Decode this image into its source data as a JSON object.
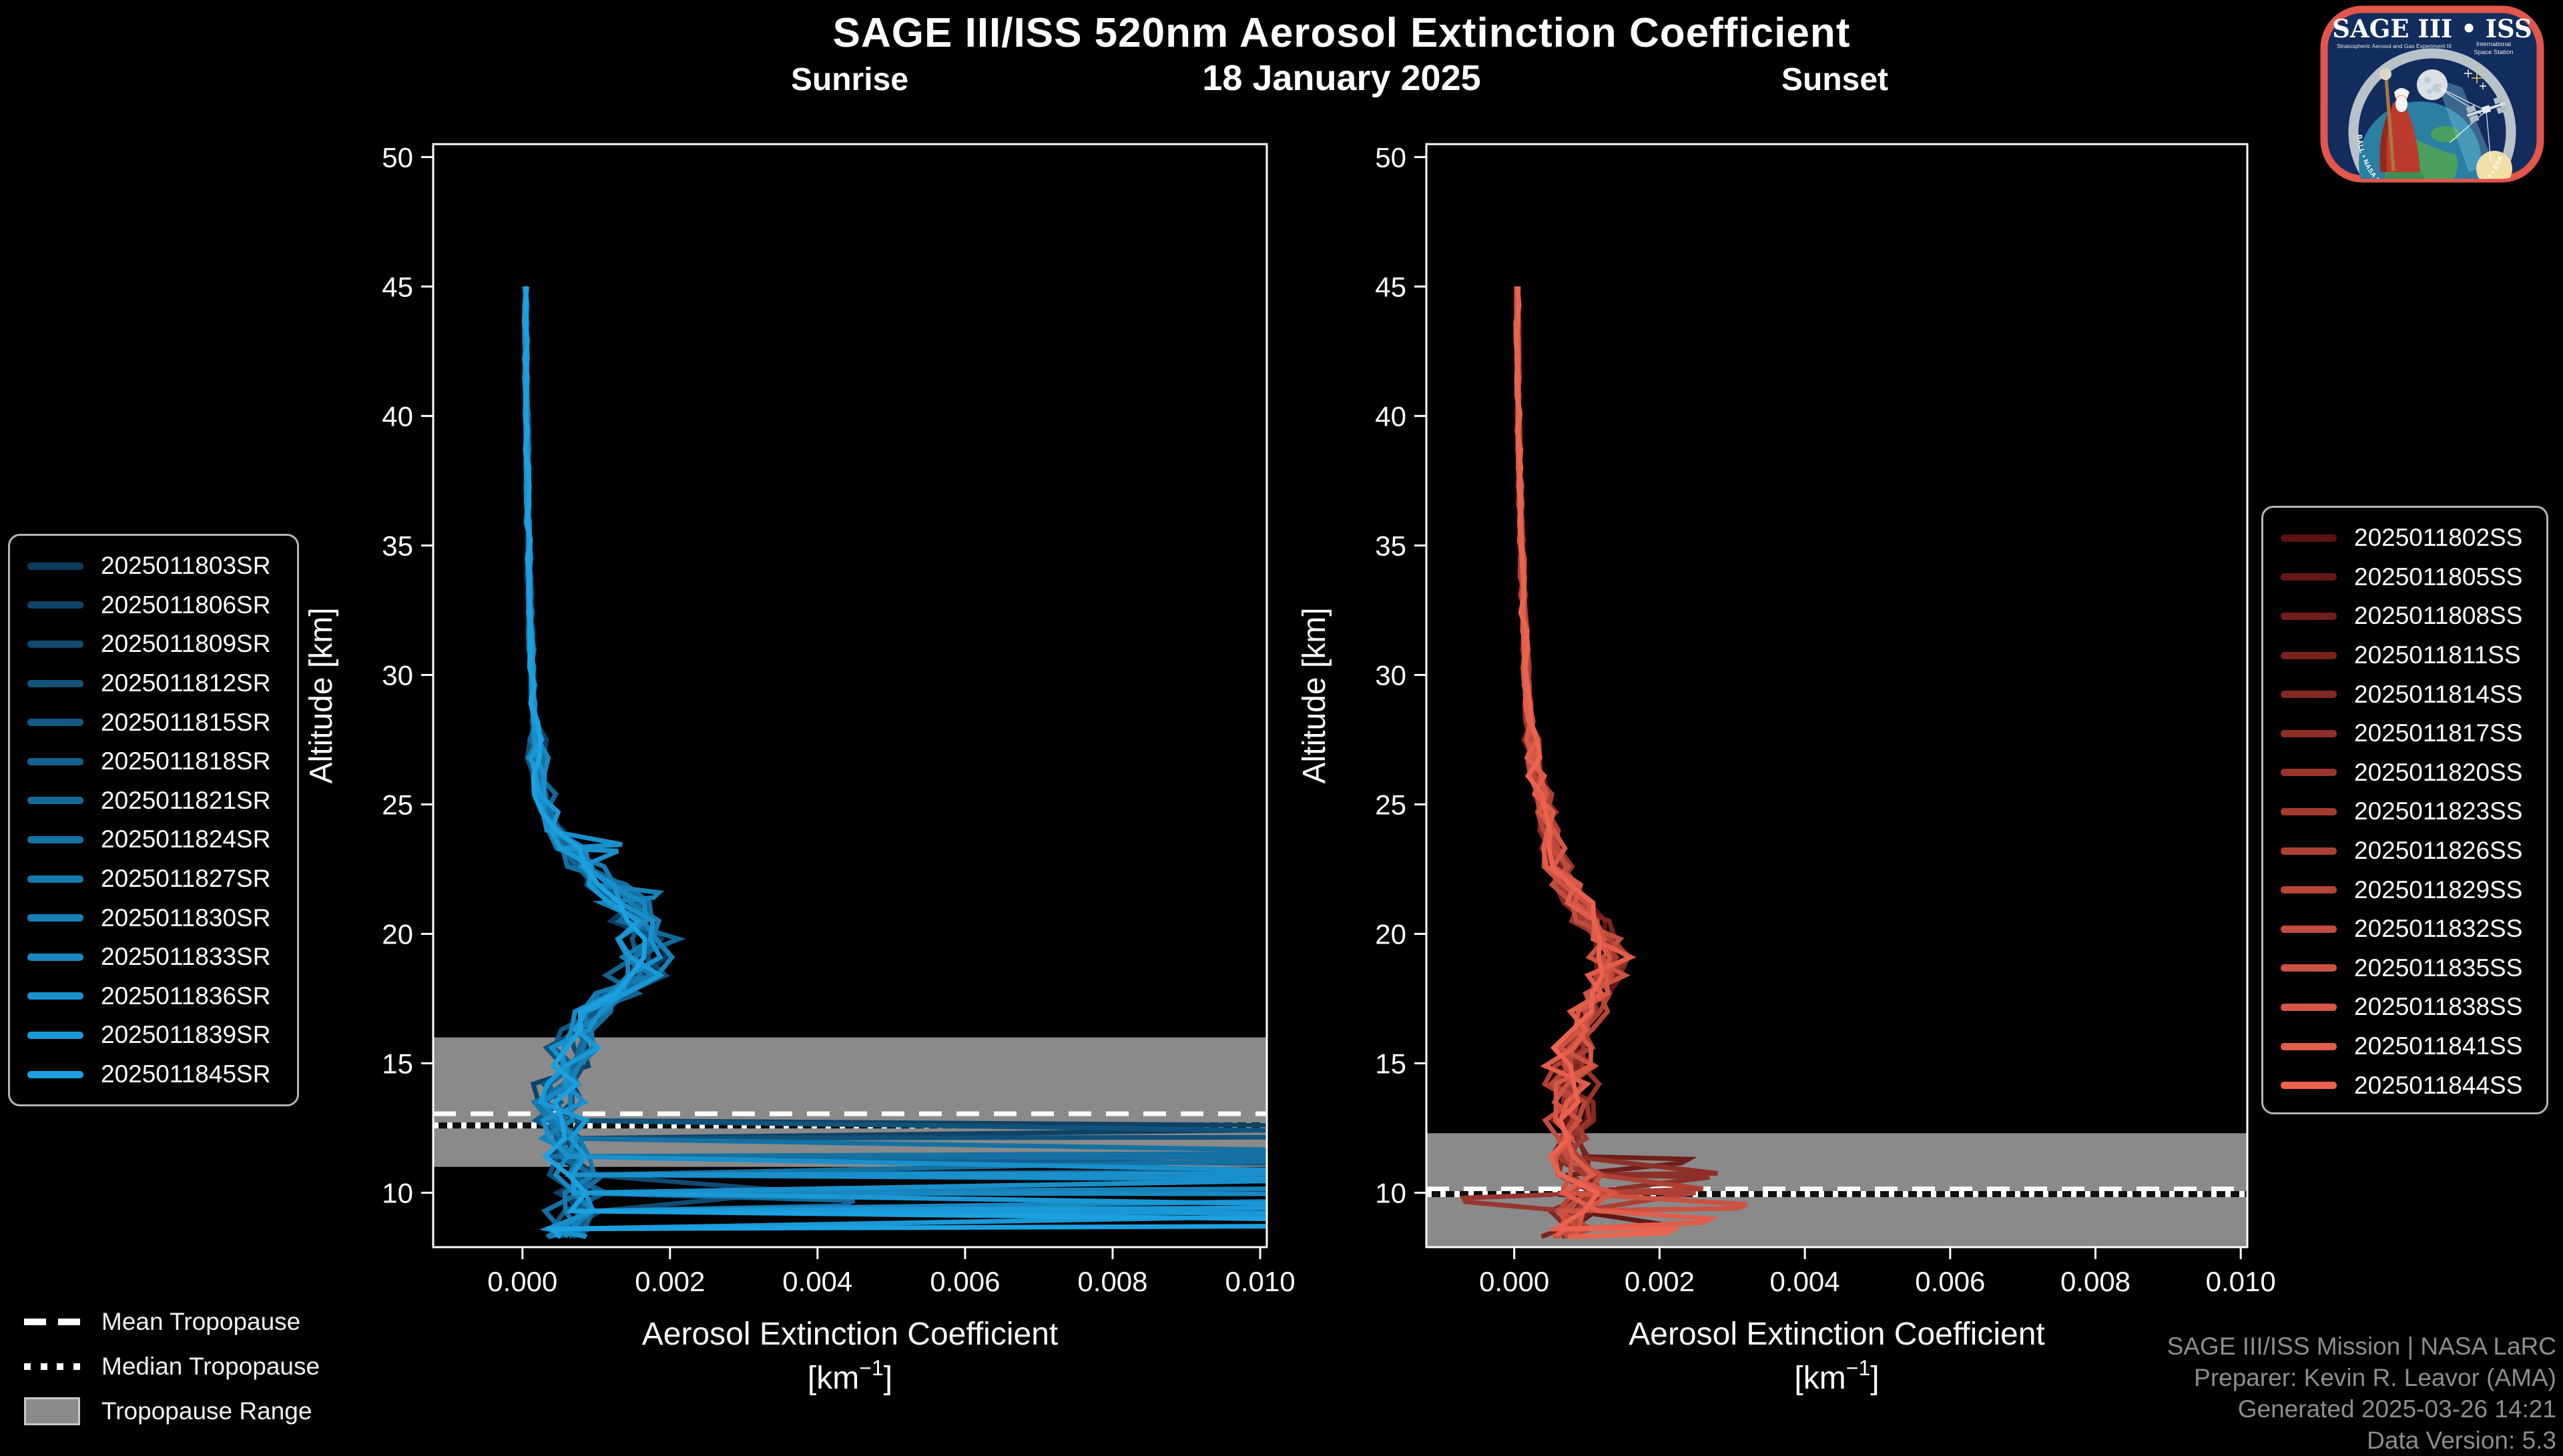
{
  "page": {
    "background": "#000000"
  },
  "header": {
    "title": "SAGE III/ISS 520nm Aerosol Extinction Coefficient",
    "date": "18 January 2025"
  },
  "logo": {
    "title": "SAGE III • ISS",
    "subtitle_left": "Stratospheric Aerosol and Gas Experiment III",
    "subtitle_right_line1": "International",
    "subtitle_right_line2": "Space Station",
    "ring_text": "BALL • NASA LANGLEY RESEARCH CENTER • TAS-I • ESA",
    "border_color": "#e2574a",
    "background_color": "#132c5e"
  },
  "axes": {
    "ylabel": "Altitude [km]",
    "xlabel": "Aerosol Extinction Coefficient",
    "xunit_prefix": "[km",
    "xunit_sup": "−1",
    "xunit_suffix": "]",
    "x_tick_labels": [
      "0.000",
      "0.002",
      "0.004",
      "0.006",
      "0.008",
      "0.010"
    ],
    "x_tick_values": [
      0,
      0.002,
      0.004,
      0.006,
      0.008,
      0.01
    ],
    "y_tick_labels": [
      "10",
      "15",
      "20",
      "25",
      "30",
      "35",
      "40",
      "45",
      "50"
    ],
    "y_tick_values": [
      10,
      15,
      20,
      25,
      30,
      35,
      40,
      45,
      50
    ]
  },
  "tropopause_legend": {
    "mean_label": "Mean Tropopause",
    "median_label": "Median Tropopause",
    "range_label": "Tropopause Range",
    "range_color": "#8a8a8a"
  },
  "credits": {
    "color": "#8d8d8d",
    "lines": [
      "SAGE III/ISS Mission | NASA LaRC",
      "Preparer: Kevin R. Leavor (AMA)",
      "Generated 2025-03-26 14:21",
      "Data Version: 5.3"
    ]
  },
  "chart_data": [
    {
      "type": "line",
      "title": "Sunrise",
      "xlabel": "Aerosol Extinction Coefficient [km^-1]",
      "ylabel": "Altitude [km]",
      "xlim": [
        -0.00121,
        0.01009
      ],
      "ylim": [
        7.9,
        50.5
      ],
      "legend_position": "outside-left",
      "grid": false,
      "tropopause": {
        "range_km": [
          11.0,
          16.0
        ],
        "mean_km": 13.05,
        "median_km": 12.6
      },
      "noise": {
        "rel": 0.22,
        "hi": 2e-05,
        "mid": 0.00012,
        "lo": 0.00028
      },
      "base_profile": {
        "alt_km": [
          45,
          44.3,
          43.6,
          42.9,
          42.2,
          41.5,
          40.8,
          40.1,
          39.4,
          38.7,
          38,
          37.3,
          36.6,
          35.9,
          35.2,
          34.5,
          33.8,
          33.1,
          32.4,
          31.7,
          31,
          30.3,
          29.6,
          28.9,
          28.2,
          27.5,
          26.8,
          26.1,
          25.4,
          24.7,
          24,
          23.3,
          22.6,
          21.9,
          21.2,
          20.5,
          19.8,
          19.1,
          18.4,
          17.7,
          17,
          16.3,
          15.6,
          14.9,
          14.2,
          13.5,
          12.8,
          12.1,
          11.4,
          10.7,
          10,
          9.3,
          8.6,
          8.3
        ],
        "extinction_km1": [
          4e-05,
          4e-05,
          4.2e-05,
          4.4e-05,
          4.6e-05,
          4.8e-05,
          5e-05,
          5.3e-05,
          5.6e-05,
          6e-05,
          6.3e-05,
          6.7e-05,
          7.1e-05,
          7.6e-05,
          8.1e-05,
          8.7e-05,
          9.3e-05,
          0.0001,
          0.000107,
          0.000114,
          0.000122,
          0.000131,
          0.00014,
          0.00015,
          0.000162,
          0.000178,
          0.0002,
          0.00023,
          0.00028,
          0.00036,
          0.00048,
          0.00065,
          0.00088,
          0.00115,
          0.00138,
          0.00158,
          0.00172,
          0.00174,
          0.00158,
          0.00128,
          0.00098,
          0.00082,
          0.0007,
          0.0006,
          0.00052,
          0.00048,
          0.0005,
          0.00056,
          0.00063,
          0.0007,
          0.00078,
          0.00072,
          0.00058,
          0.00052
        ]
      },
      "series": [
        {
          "label": "2025011803SR",
          "color": "#0e3a5c",
          "seed": 101,
          "spikes": []
        },
        {
          "label": "2025011806SR",
          "color": "#0f4266",
          "seed": 102,
          "spikes": [
            [
              12.6,
              12.42,
              0.0105
            ]
          ]
        },
        {
          "label": "2025011809SR",
          "color": "#104a70",
          "seed": 103,
          "spikes": [
            [
              10.1,
              9.95,
              0.0035
            ]
          ]
        },
        {
          "label": "2025011812SR",
          "color": "#11527a",
          "seed": 104,
          "spikes": [
            [
              12.35,
              12.15,
              0.0115
            ]
          ]
        },
        {
          "label": "2025011815SR",
          "color": "#125985",
          "seed": 105,
          "spikes": []
        },
        {
          "label": "2025011818SR",
          "color": "#13618f",
          "seed": 106,
          "spikes": [
            [
              11.05,
              10.85,
              0.013
            ]
          ]
        },
        {
          "label": "2025011821SR",
          "color": "#146999",
          "seed": 107,
          "spikes": [
            [
              9.7,
              9.5,
              0.0045
            ]
          ]
        },
        {
          "label": "2025011824SR",
          "color": "#1571a3",
          "seed": 108,
          "spikes": [
            [
              11.55,
              11.35,
              0.0125
            ]
          ]
        },
        {
          "label": "2025011827SR",
          "color": "#1679ad",
          "seed": 109,
          "spikes": []
        },
        {
          "label": "2025011830SR",
          "color": "#1781b7",
          "seed": 110,
          "spikes": [
            [
              21.6,
              21.4,
              0.00185
            ],
            [
              10.45,
              10.2,
              0.0135
            ]
          ]
        },
        {
          "label": "2025011833SR",
          "color": "#1888c2",
          "seed": 111,
          "spikes": [
            [
              9.95,
              9.72,
              0.012
            ]
          ]
        },
        {
          "label": "2025011836SR",
          "color": "#1990cc",
          "seed": 112,
          "spikes": [
            [
              23.45,
              23.2,
              0.00135
            ],
            [
              10.75,
              10.55,
              0.0125
            ]
          ]
        },
        {
          "label": "2025011839SR",
          "color": "#1a98d6",
          "seed": 113,
          "spikes": [
            [
              9.45,
              9.2,
              0.013
            ]
          ]
        },
        {
          "label": "2025011845SR",
          "color": "#1ba0e0",
          "seed": 114,
          "spikes": [
            [
              8.95,
              8.72,
              0.0115
            ]
          ]
        }
      ]
    },
    {
      "type": "line",
      "title": "Sunset",
      "xlabel": "Aerosol Extinction Coefficient [km^-1]",
      "ylabel": "Altitude [km]",
      "xlim": [
        -0.00121,
        0.01009
      ],
      "ylim": [
        7.9,
        50.5
      ],
      "legend_position": "outside-right",
      "grid": false,
      "tropopause": {
        "range_km": [
          7.9,
          12.3
        ],
        "mean_km": 10.15,
        "median_km": 9.95
      },
      "noise": {
        "rel": 0.2,
        "hi": 2e-05,
        "mid": 0.0001,
        "lo": 0.00026
      },
      "base_profile": {
        "alt_km": [
          45,
          44.3,
          43.6,
          42.9,
          42.2,
          41.5,
          40.8,
          40.1,
          39.4,
          38.7,
          38,
          37.3,
          36.6,
          35.9,
          35.2,
          34.5,
          33.8,
          33.1,
          32.4,
          31.7,
          31,
          30.3,
          29.6,
          28.9,
          28.2,
          27.5,
          26.8,
          26.1,
          25.4,
          24.7,
          24,
          23.3,
          22.6,
          21.9,
          21.2,
          20.5,
          19.8,
          19.1,
          18.4,
          17.7,
          17,
          16.3,
          15.6,
          14.9,
          14.2,
          13.5,
          12.8,
          12.1,
          11.4,
          10.7,
          10,
          9.3,
          8.6,
          8.3
        ],
        "extinction_km1": [
          4e-05,
          4.2e-05,
          4.4e-05,
          4.6e-05,
          4.9e-05,
          5.2e-05,
          5.5e-05,
          5.9e-05,
          6.3e-05,
          6.8e-05,
          7.3e-05,
          7.8e-05,
          8.4e-05,
          9e-05,
          9.7e-05,
          0.000104,
          0.000112,
          0.00012,
          0.000129,
          0.000139,
          0.00015,
          0.000162,
          0.000175,
          0.00019,
          0.000207,
          0.000228,
          0.000258,
          0.0003,
          0.00036,
          0.00042,
          0.00048,
          0.00054,
          0.00062,
          0.00074,
          0.00089,
          0.00105,
          0.00122,
          0.00135,
          0.00128,
          0.00112,
          0.001,
          0.00092,
          0.00086,
          0.00081,
          0.00078,
          0.00076,
          0.00075,
          0.00076,
          0.00082,
          0.0009,
          0.00098,
          0.00088,
          0.00072,
          0.00066
        ]
      },
      "series": [
        {
          "label": "2025011802SS",
          "color": "#5a1212",
          "seed": 201,
          "spikes": []
        },
        {
          "label": "2025011805SS",
          "color": "#641816",
          "seed": 202,
          "spikes": [
            [
              8.8,
              8.65,
              0.002
            ]
          ]
        },
        {
          "label": "2025011808SS",
          "color": "#6f1e1b",
          "seed": 203,
          "spikes": [
            [
              11.3,
              11.15,
              0.0024
            ]
          ]
        },
        {
          "label": "2025011811SS",
          "color": "#79231f",
          "seed": 204,
          "spikes": []
        },
        {
          "label": "2025011814SS",
          "color": "#832923",
          "seed": 205,
          "spikes": []
        },
        {
          "label": "2025011817SS",
          "color": "#8e2f27",
          "seed": 206,
          "spikes": [
            [
              10.75,
              10.6,
              0.0028
            ]
          ]
        },
        {
          "label": "2025011820SS",
          "color": "#98352c",
          "seed": 207,
          "spikes": [
            [
              9.8,
              9.65,
              -0.0007
            ]
          ]
        },
        {
          "label": "2025011823SS",
          "color": "#a33b30",
          "seed": 208,
          "spikes": []
        },
        {
          "label": "2025011826SS",
          "color": "#ad4034",
          "seed": 209,
          "spikes": [
            [
              10.15,
              10.0,
              0.0026
            ]
          ]
        },
        {
          "label": "2025011829SS",
          "color": "#b74639",
          "seed": 210,
          "spikes": []
        },
        {
          "label": "2025011832SS",
          "color": "#c24c3d",
          "seed": 211,
          "spikes": []
        },
        {
          "label": "2025011835SS",
          "color": "#cc5241",
          "seed": 212,
          "spikes": [
            [
              9.55,
              9.4,
              0.0032
            ]
          ]
        },
        {
          "label": "2025011838SS",
          "color": "#d65745",
          "seed": 213,
          "spikes": []
        },
        {
          "label": "2025011841SS",
          "color": "#e15d4a",
          "seed": 214,
          "spikes": [
            [
              9.0,
              8.85,
              0.0027
            ]
          ]
        },
        {
          "label": "2025011844SS",
          "color": "#eb634e",
          "seed": 215,
          "spikes": [
            [
              8.6,
              8.45,
              0.0022
            ]
          ]
        }
      ]
    }
  ]
}
